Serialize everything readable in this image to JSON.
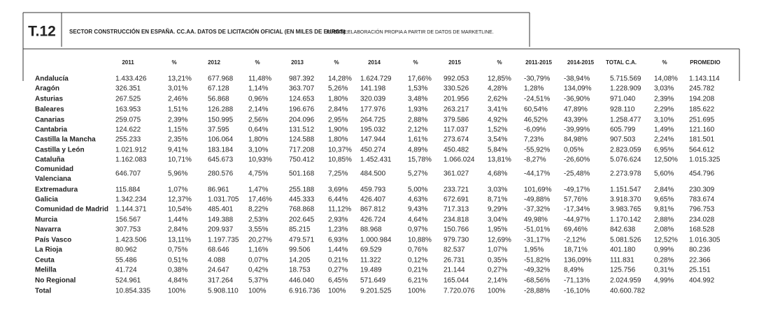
{
  "header": {
    "code": "T.12",
    "title": "SECTOR CONSTRUCCIÓN EN ESPAÑA. CC.AA. DATOS DE LICITACIÓN OFICIAL (EN MILES DE EUROS)",
    "source_label": "FUENTE:",
    "source": "ELABORACIÓN PROPIA A PARTIR DE DATOS DE MARKETLINE."
  },
  "table": {
    "columns": [
      "2011",
      "%",
      "2012",
      "%",
      "2013",
      "%",
      "2014",
      "%",
      "2015",
      "%",
      "2011-2015",
      "2014-2015",
      "TOTAL C.A.",
      "%",
      "PROMEDIO"
    ],
    "rows": [
      [
        "Andalucía",
        "1.433.426",
        "13,21%",
        "677.968",
        "11,48%",
        "987.392",
        "14,28%",
        "1.624.729",
        "17,66%",
        "992.053",
        "12,85%",
        "-30,79%",
        "-38,94%",
        "5.715.569",
        "14,08%",
        "1.143.114"
      ],
      [
        "Aragón",
        "326.351",
        "3,01%",
        "67.128",
        "1,14%",
        "363.707",
        "5,26%",
        "141.198",
        "1,53%",
        "330.526",
        "4,28%",
        "1,28%",
        "134,09%",
        "1.228.909",
        "3,03%",
        "245.782"
      ],
      [
        "Asturias",
        "267.525",
        "2,46%",
        "56.868",
        "0,96%",
        "124.653",
        "1,80%",
        "320.039",
        "3,48%",
        "201.956",
        "2,62%",
        "-24,51%",
        "-36,90%",
        "971.040",
        "2,39%",
        "194.208"
      ],
      [
        "Baleares",
        "163.953",
        "1,51%",
        "126.288",
        "2,14%",
        "196.676",
        "2,84%",
        "177.976",
        "1,93%",
        "263.217",
        "3,41%",
        "60,54%",
        "47,89%",
        "928.110",
        "2,29%",
        "185.622"
      ],
      [
        "Canarias",
        "259.075",
        "2,39%",
        "150.995",
        "2,56%",
        "204.096",
        "2,95%",
        "264.725",
        "2,88%",
        "379.586",
        "4,92%",
        "46,52%",
        "43,39%",
        "1.258.477",
        "3,10%",
        "251.695"
      ],
      [
        "Cantabria",
        "124.622",
        "1,15%",
        "37.595",
        "0,64%",
        "131.512",
        "1,90%",
        "195.032",
        "2,12%",
        "117.037",
        "1,52%",
        "-6,09%",
        "-39,99%",
        "605.799",
        "1,49%",
        "121.160"
      ],
      [
        "Castilla la Mancha",
        "255.233",
        "2,35%",
        "106.064",
        "1,80%",
        "124.588",
        "1,80%",
        "147.944",
        "1,61%",
        "273.674",
        "3,54%",
        "7,23%",
        "84,98%",
        "907.503",
        "2,24%",
        "181.501"
      ],
      [
        "Castilla y León",
        "1.021.912",
        "9,41%",
        "183.184",
        "3,10%",
        "717.208",
        "10,37%",
        "450.274",
        "4,89%",
        "450.482",
        "5,84%",
        "-55,92%",
        "0,05%",
        "2.823.059",
        "6,95%",
        "564.612"
      ],
      [
        "Cataluña",
        "1.162.083",
        "10,71%",
        "645.673",
        "10,93%",
        "750.412",
        "10,85%",
        "1.452.431",
        "15,78%",
        "1.066.024",
        "13,81%",
        "-8,27%",
        "-26,60%",
        "5.076.624",
        "12,50%",
        "1.015.325"
      ],
      [
        "Comunidad Valenciana",
        "646.707",
        "5,96%",
        "280.576",
        "4,75%",
        "501.168",
        "7,25%",
        "484.500",
        "5,27%",
        "361.027",
        "4,68%",
        "-44,17%",
        "-25,48%",
        "2.273.978",
        "5,60%",
        "454.796"
      ],
      [
        "Extremadura",
        "115.884",
        "1,07%",
        "86.961",
        "1,47%",
        "255.188",
        "3,69%",
        "459.793",
        "5,00%",
        "233.721",
        "3,03%",
        "101,69%",
        "-49,17%",
        "1.151.547",
        "2,84%",
        "230.309"
      ],
      [
        "Galicia",
        "1.342.234",
        "12,37%",
        "1.031.705",
        "17,46%",
        "445.333",
        "6,44%",
        "426.407",
        "4,63%",
        "672.691",
        "8,71%",
        "-49,88%",
        "57,76%",
        "3.918.370",
        "9,65%",
        "783.674"
      ],
      [
        "Comunidad de Madrid",
        "1.144.371",
        "10,54%",
        "485.401",
        "8,22%",
        "768.868",
        "11,12%",
        "867.812",
        "9,43%",
        "717.313",
        "9,29%",
        "-37,32%",
        "-17,34%",
        "3.983.765",
        "9,81%",
        "796.753"
      ],
      [
        "Murcia",
        "156.567",
        "1,44%",
        "149.388",
        "2,53%",
        "202.645",
        "2,93%",
        "426.724",
        "4,64%",
        "234.818",
        "3,04%",
        "49,98%",
        "-44,97%",
        "1.170.142",
        "2,88%",
        "234.028"
      ],
      [
        "Navarra",
        "307.753",
        "2,84%",
        "209.937",
        "3,55%",
        "85.215",
        "1,23%",
        "88.968",
        "0,97%",
        "150.766",
        "1,95%",
        "-51,01%",
        "69,46%",
        "842.638",
        "2,08%",
        "168.528"
      ],
      [
        "País Vasco",
        "1.423.506",
        "13,11%",
        "1.197.735",
        "20,27%",
        "479.571",
        "6,93%",
        "1.000.984",
        "10,88%",
        "979.730",
        "12,69%",
        "-31,17%",
        "-2,12%",
        "5.081.526",
        "12,52%",
        "1.016.305"
      ],
      [
        "La Rioja",
        "80.962",
        "0,75%",
        "68.646",
        "1,16%",
        "99.506",
        "1,44%",
        "69.529",
        "0,76%",
        "82.537",
        "1,07%",
        "1,95%",
        "18,71%",
        "401.180",
        "0,99%",
        "80.236"
      ],
      [
        "Ceuta",
        "55.486",
        "0,51%",
        "4.088",
        "0,07%",
        "14.205",
        "0,21%",
        "11.322",
        "0,12%",
        "26.731",
        "0,35%",
        "-51,82%",
        "136,09%",
        "111.831",
        "0,28%",
        "22.366"
      ],
      [
        "Melilla",
        "41.724",
        "0,38%",
        "24.647",
        "0,42%",
        "18.753",
        "0,27%",
        "19.489",
        "0,21%",
        "21.144",
        "0,27%",
        "-49,32%",
        "8,49%",
        "125.756",
        "0,31%",
        "25.151"
      ],
      [
        "No Regional",
        "524.961",
        "4,84%",
        "317.264",
        "5,37%",
        "446.040",
        "6,45%",
        "571.649",
        "6,21%",
        "165.044",
        "2,14%",
        "-68,56%",
        "-71,13%",
        "2.024.959",
        "4,99%",
        "404.992"
      ],
      [
        "Total",
        "10.854.335",
        "100%",
        "5.908.110",
        "100%",
        "6.916.736",
        "100%",
        "9.201.525",
        "100%",
        "7.720.076",
        "100%",
        "-28,88%",
        "-16,10%",
        "40.600.782"
      ]
    ]
  }
}
